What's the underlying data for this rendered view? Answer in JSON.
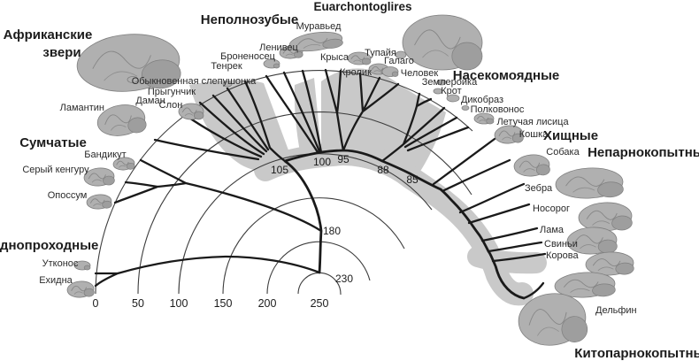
{
  "figure": {
    "type": "phylogenetic-fan-tree-of-mammal-brains",
    "colors": {
      "background": "#ffffff",
      "highlight_band": "#c9c9c9",
      "branches": "#1a1a1a",
      "time_arcs": "#3d3d3d",
      "text": "#1f1f1f"
    }
  },
  "clade_labels": {
    "afrotheria_line1": "Африканские",
    "afrotheria_line2": "звери",
    "xenarthra": "Неполнозубые",
    "euarchontoglires": "Euarchontoglires",
    "insectivores": "Насекомоядные",
    "carnivores": "Хищные",
    "perissodactyls": "Непарнокопытные",
    "cetartiodactyls": "Китопарнокопытные",
    "marsupials": "Сумчатые",
    "monotremes": "Однопроходные"
  },
  "taxa": {
    "manatee": "Ламантин",
    "mole_vole": "Обыкновенная слепушонка",
    "elephant_shrew": "Прыгунчик",
    "hyrax": "Даман",
    "elephant": "Слон",
    "tenrec": "Тенрек",
    "armadillo": "Броненосец",
    "sloth": "Ленивец",
    "anteater": "Муравьед",
    "rat": "Крыса",
    "rabbit": "Кролик",
    "tree_shrew": "Тупайя",
    "galago": "Галаго",
    "human": "Человек",
    "shrew": "Землеройка",
    "mole": "Крот",
    "porcupine": "Дикобраз",
    "horseshoe_bat": "Полковонос",
    "flying_fox": "Летучая лисица",
    "cat": "Кошка",
    "dog": "Собака",
    "zebra": "Зебра",
    "rhino": "Носорог",
    "llama": "Лама",
    "pigs": "Свиньи",
    "cow": "Корова",
    "dolphin": "Дельфин",
    "bandicoot": "Бандикут",
    "grey_kangaroo": "Серый кенгуру",
    "opossum": "Опоссум",
    "platypus": "Утконос",
    "echidna": "Ехидна"
  },
  "divergence_times": {
    "d105": "105",
    "d100": "100",
    "d95": "95",
    "d88": "88",
    "d85": "85",
    "d180": "180",
    "d230": "230"
  },
  "time_axis": {
    "ticks": [
      "0",
      "50",
      "100",
      "150",
      "200",
      "250"
    ]
  }
}
